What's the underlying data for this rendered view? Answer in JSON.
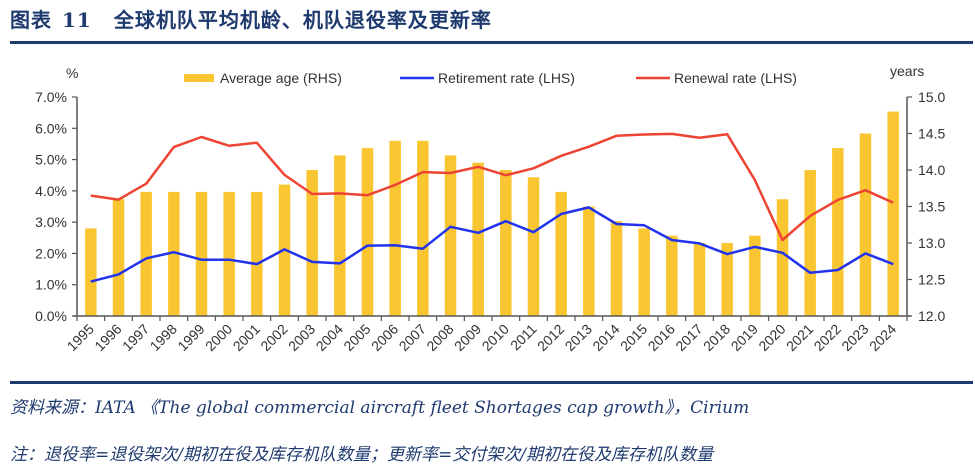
{
  "header": {
    "figure_label": "图表",
    "figure_number": "11",
    "title": "全球机队平均机龄、机队退役率及更新率"
  },
  "footer": {
    "source": "资料来源：IATA 《The global commercial aircraft fleet Shortages cap growth》，Cirium",
    "note": "注：退役率=退役架次/期初在役及库存机队数量；更新率=交付架次/期初在役及库存机队数量"
  },
  "colors": {
    "bar": "#F9C632",
    "retirement": "#2233EE",
    "renewal": "#EE4433",
    "title": "#1f3a6e",
    "axis": "#555555"
  },
  "chart_data": {
    "type": "bar+line",
    "title": "全球机队平均机龄、机队退役率及更新率",
    "x": [
      "1995",
      "1996",
      "1997",
      "1998",
      "1999",
      "2000",
      "2001",
      "2002",
      "2003",
      "2004",
      "2005",
      "2006",
      "2007",
      "2008",
      "2009",
      "2010",
      "2011",
      "2012",
      "2013",
      "2014",
      "2015",
      "2016",
      "2017",
      "2018",
      "2019",
      "2020",
      "2021",
      "2022",
      "2023",
      "2024"
    ],
    "left_axis": {
      "unit_label": "%",
      "ylim": [
        0,
        7
      ],
      "ticks": [
        "0.0%",
        "1.0%",
        "2.0%",
        "3.0%",
        "4.0%",
        "5.0%",
        "6.0%",
        "7.0%"
      ]
    },
    "right_axis": {
      "unit_label": "years",
      "ylim": [
        12.0,
        15.0
      ],
      "ticks": [
        "12.0",
        "12.5",
        "13.0",
        "13.5",
        "14.0",
        "14.5",
        "15.0"
      ]
    },
    "legend": {
      "placement": "top",
      "entries": [
        {
          "label": "Average age (RHS)",
          "kind": "bar"
        },
        {
          "label": "Retirement rate (LHS)",
          "kind": "line"
        },
        {
          "label": "Renewal rate (LHS)",
          "kind": "line"
        }
      ]
    },
    "series": [
      {
        "name": "Average age (RHS)",
        "type": "bar",
        "axis": "right",
        "values": [
          13.2,
          13.6,
          13.7,
          13.7,
          13.7,
          13.7,
          13.7,
          13.8,
          14.0,
          14.2,
          14.3,
          14.4,
          14.4,
          14.2,
          14.1,
          14.0,
          13.9,
          13.7,
          13.5,
          13.3,
          13.2,
          13.1,
          13.0,
          13.0,
          13.1,
          13.6,
          14.0,
          14.3,
          14.5,
          14.8
        ]
      },
      {
        "name": "Retirement rate (LHS)",
        "type": "line",
        "axis": "left",
        "values": [
          1.1,
          1.33,
          1.84,
          2.04,
          1.8,
          1.8,
          1.66,
          2.13,
          1.73,
          1.68,
          2.25,
          2.26,
          2.15,
          2.85,
          2.66,
          3.03,
          2.68,
          3.26,
          3.47,
          2.94,
          2.9,
          2.43,
          2.32,
          1.98,
          2.21,
          2.02,
          1.38,
          1.47,
          2.0,
          1.66
        ]
      },
      {
        "name": "Renewal rate (LHS)",
        "type": "line",
        "axis": "left",
        "values": [
          3.85,
          3.72,
          4.23,
          5.4,
          5.72,
          5.44,
          5.54,
          4.51,
          3.9,
          3.92,
          3.86,
          4.19,
          4.6,
          4.57,
          4.77,
          4.5,
          4.72,
          5.12,
          5.41,
          5.76,
          5.8,
          5.82,
          5.7,
          5.81,
          4.35,
          2.43,
          3.2,
          3.71,
          4.02,
          3.62
        ]
      }
    ],
    "grid": false
  }
}
